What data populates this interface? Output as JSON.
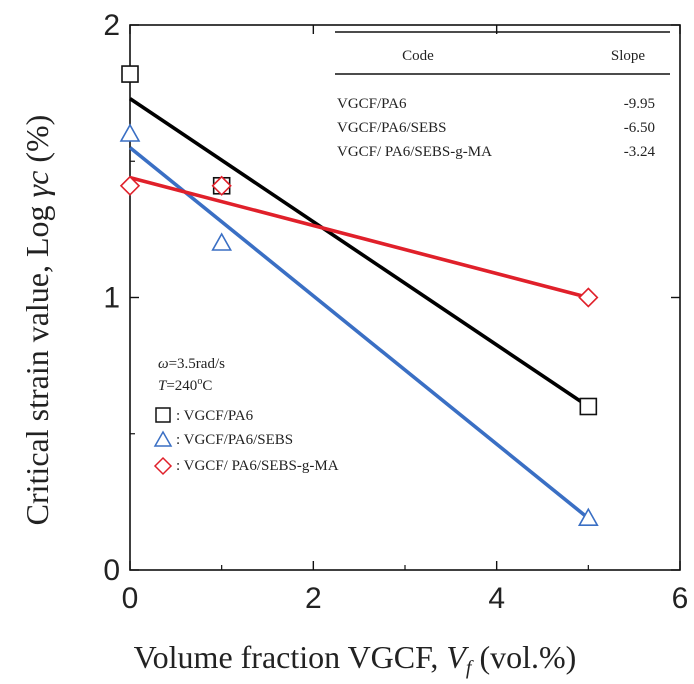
{
  "chart_data": {
    "type": "scatter",
    "xlabel_main": "Volume fraction VGCF, ",
    "xlabel_var": "V",
    "xlabel_sub": "f",
    "xlabel_unit": " (vol.%)",
    "ylabel_main": "Critical strain value, Log ",
    "ylabel_var": "γc",
    "ylabel_unit": " (%)",
    "xlim": [
      0,
      6
    ],
    "ylim": [
      0,
      2
    ],
    "x_ticks": [
      "0",
      "2",
      "4",
      "6"
    ],
    "y_ticks": [
      "0",
      "1",
      "2"
    ],
    "series": [
      {
        "name": "VGCF/PA6",
        "marker": "square",
        "color": "#111111",
        "line_color": "#000000",
        "points": [
          [
            0,
            1.82
          ],
          [
            1,
            1.41
          ],
          [
            5,
            0.6
          ]
        ],
        "fit": [
          [
            0,
            1.73
          ],
          [
            5,
            0.6
          ]
        ]
      },
      {
        "name": "VGCF/PA6/SEBS",
        "marker": "triangle",
        "color": "#3a6fc4",
        "line_color": "#3a6fc4",
        "points": [
          [
            0,
            1.6
          ],
          [
            1,
            1.2
          ],
          [
            5,
            0.19
          ]
        ],
        "fit": [
          [
            0,
            1.55
          ],
          [
            5,
            0.19
          ]
        ]
      },
      {
        "name": "VGCF/ PA6/SEBS-g-MA",
        "marker": "diamond",
        "color": "#e0202a",
        "line_color": "#e0202a",
        "points": [
          [
            0,
            1.41
          ],
          [
            1,
            1.41
          ],
          [
            5,
            1.0
          ]
        ],
        "fit": [
          [
            0,
            1.44
          ],
          [
            5,
            1.0
          ]
        ]
      }
    ],
    "table": {
      "header_code": "Code",
      "header_slope": "Slope",
      "rows": [
        {
          "code": "VGCF/PA6",
          "slope": "-9.95"
        },
        {
          "code": "VGCF/PA6/SEBS",
          "slope": "-6.50"
        },
        {
          "code": "VGCF/ PA6/SEBS-g-MA",
          "slope": "-3.24"
        }
      ]
    },
    "conditions": {
      "omega_symbol": "ω",
      "omega_value": "=3.5rad/s",
      "temp_symbol": "T",
      "temp_value": "=240",
      "temp_sup": "o",
      "temp_unit": "C"
    },
    "legend_entries": [
      ": VGCF/PA6",
      ": VGCF/PA6/SEBS",
      ": VGCF/ PA6/SEBS-g-MA"
    ]
  }
}
